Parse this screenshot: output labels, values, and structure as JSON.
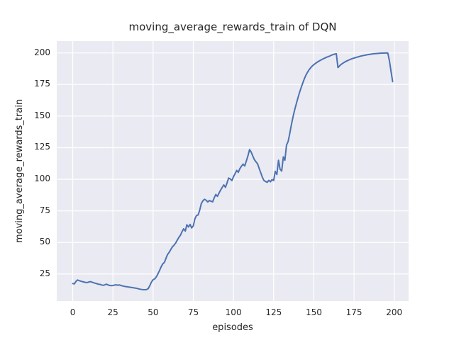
{
  "chart_data": {
    "type": "line",
    "title": "moving_average_rewards_train of DQN",
    "xlabel": "episodes",
    "ylabel": "moving_average_rewards_train",
    "xlim": [
      -9.95,
      208.95
    ],
    "ylim": [
      3.65,
      209.35
    ],
    "xticks": [
      0,
      25,
      50,
      75,
      100,
      125,
      150,
      175,
      200
    ],
    "yticks": [
      25,
      50,
      75,
      100,
      125,
      150,
      175,
      200
    ],
    "grid": true,
    "legend_position": "none",
    "plot_bg": "#EAEAF2",
    "grid_color": "#FFFFFF",
    "text_color": "#262626",
    "fig_bg": "#FFFFFF",
    "series": [
      {
        "name": "moving_average_rewards_train",
        "color": "#4C72B0",
        "line_width": 2,
        "points": [
          [
            0,
            17.5
          ],
          [
            1,
            17.2
          ],
          [
            2,
            19.2
          ],
          [
            3,
            20.3
          ],
          [
            4,
            19.8
          ],
          [
            5,
            19.4
          ],
          [
            6,
            19.0
          ],
          [
            7,
            18.7
          ],
          [
            8,
            18.4
          ],
          [
            9,
            18.3
          ],
          [
            10,
            18.7
          ],
          [
            11,
            19.0
          ],
          [
            12,
            18.6
          ],
          [
            13,
            18.1
          ],
          [
            14,
            17.7
          ],
          [
            15,
            17.4
          ],
          [
            16,
            17.0
          ],
          [
            17,
            16.8
          ],
          [
            18,
            16.4
          ],
          [
            19,
            16.1
          ],
          [
            20,
            16.5
          ],
          [
            21,
            17.0
          ],
          [
            22,
            16.4
          ],
          [
            23,
            16.0
          ],
          [
            24,
            15.8
          ],
          [
            25,
            15.9
          ],
          [
            26,
            16.3
          ],
          [
            27,
            16.5
          ],
          [
            28,
            16.2
          ],
          [
            29,
            16.4
          ],
          [
            30,
            16.0
          ],
          [
            31,
            15.6
          ],
          [
            32,
            15.3
          ],
          [
            33,
            15.1
          ],
          [
            34,
            14.9
          ],
          [
            35,
            14.7
          ],
          [
            36,
            14.5
          ],
          [
            37,
            14.3
          ],
          [
            38,
            14.1
          ],
          [
            39,
            13.9
          ],
          [
            40,
            13.6
          ],
          [
            41,
            13.3
          ],
          [
            42,
            13.0
          ],
          [
            43,
            12.8
          ],
          [
            44,
            12.7
          ],
          [
            45,
            12.6
          ],
          [
            46,
            12.8
          ],
          [
            47,
            13.5
          ],
          [
            48,
            16.0
          ],
          [
            49,
            18.8
          ],
          [
            50,
            20.5
          ],
          [
            51,
            21.2
          ],
          [
            52,
            22.8
          ],
          [
            53,
            25.2
          ],
          [
            54,
            27.8
          ],
          [
            55,
            30.8
          ],
          [
            56,
            33.0
          ],
          [
            57,
            34.2
          ],
          [
            58,
            37.5
          ],
          [
            59,
            40.5
          ],
          [
            60,
            42.2
          ],
          [
            61,
            44.5
          ],
          [
            62,
            46.5
          ],
          [
            63,
            47.8
          ],
          [
            64,
            49.5
          ],
          [
            65,
            51.8
          ],
          [
            66,
            54.0
          ],
          [
            67,
            55.8
          ],
          [
            68,
            58.5
          ],
          [
            69,
            60.8
          ],
          [
            70,
            59.0
          ],
          [
            71,
            64.0
          ],
          [
            72,
            62.3
          ],
          [
            73,
            64.3
          ],
          [
            74,
            61.5
          ],
          [
            75,
            63.2
          ],
          [
            76,
            68.8
          ],
          [
            77,
            71.3
          ],
          [
            78,
            71.8
          ],
          [
            79,
            75.5
          ],
          [
            80,
            80.8
          ],
          [
            81,
            83.0
          ],
          [
            82,
            84.2
          ],
          [
            83,
            83.4
          ],
          [
            84,
            82.0
          ],
          [
            85,
            83.2
          ],
          [
            86,
            82.6
          ],
          [
            87,
            82.1
          ],
          [
            88,
            85.2
          ],
          [
            89,
            88.0
          ],
          [
            90,
            86.5
          ],
          [
            91,
            89.0
          ],
          [
            92,
            91.5
          ],
          [
            93,
            93.6
          ],
          [
            94,
            95.5
          ],
          [
            95,
            93.6
          ],
          [
            96,
            97.2
          ],
          [
            97,
            101.0
          ],
          [
            98,
            100.2
          ],
          [
            99,
            99.0
          ],
          [
            100,
            102.0
          ],
          [
            101,
            104.5
          ],
          [
            102,
            107.0
          ],
          [
            103,
            105.5
          ],
          [
            104,
            108.5
          ],
          [
            105,
            110.5
          ],
          [
            106,
            112.0
          ],
          [
            107,
            110.5
          ],
          [
            108,
            114.5
          ],
          [
            109,
            118.5
          ],
          [
            110,
            123.5
          ],
          [
            111,
            121.5
          ],
          [
            112,
            118.5
          ],
          [
            113,
            115.5
          ],
          [
            114,
            113.8
          ],
          [
            115,
            112.2
          ],
          [
            116,
            108.5
          ],
          [
            117,
            105.0
          ],
          [
            118,
            101.5
          ],
          [
            119,
            99.0
          ],
          [
            120,
            98.2
          ],
          [
            121,
            97.6
          ],
          [
            122,
            99.2
          ],
          [
            123,
            98.0
          ],
          [
            124,
            99.8
          ],
          [
            125,
            99.0
          ],
          [
            126,
            106.3
          ],
          [
            127,
            103.8
          ],
          [
            128,
            115.0
          ],
          [
            129,
            108.0
          ],
          [
            130,
            106.5
          ],
          [
            131,
            117.7
          ],
          [
            132,
            115.0
          ],
          [
            133,
            127.0
          ],
          [
            134,
            130.0
          ],
          [
            135,
            136.0
          ],
          [
            136,
            143.0
          ],
          [
            137,
            149.2
          ],
          [
            138,
            154.5
          ],
          [
            139,
            159.3
          ],
          [
            140,
            164.0
          ],
          [
            141,
            168.2
          ],
          [
            142,
            172.2
          ],
          [
            143,
            175.8
          ],
          [
            144,
            179.2
          ],
          [
            145,
            182.2
          ],
          [
            146,
            184.6
          ],
          [
            147,
            186.6
          ],
          [
            148,
            188.2
          ],
          [
            149,
            189.6
          ],
          [
            150,
            190.7
          ],
          [
            151,
            191.7
          ],
          [
            152,
            192.6
          ],
          [
            153,
            193.4
          ],
          [
            154,
            194.1
          ],
          [
            155,
            194.8
          ],
          [
            156,
            195.4
          ],
          [
            157,
            196.0
          ],
          [
            158,
            196.6
          ],
          [
            159,
            197.1
          ],
          [
            160,
            197.6
          ],
          [
            161,
            198.2
          ],
          [
            162,
            198.7
          ],
          [
            163,
            199.1
          ],
          [
            164,
            199.3
          ],
          [
            165,
            188.4
          ],
          [
            166,
            189.8
          ],
          [
            167,
            190.9
          ],
          [
            168,
            191.8
          ],
          [
            169,
            192.6
          ],
          [
            170,
            193.3
          ],
          [
            171,
            193.9
          ],
          [
            172,
            194.5
          ],
          [
            173,
            195.0
          ],
          [
            174,
            195.5
          ],
          [
            175,
            195.9
          ],
          [
            176,
            196.3
          ],
          [
            177,
            196.7
          ],
          [
            178,
            197.0
          ],
          [
            179,
            197.4
          ],
          [
            180,
            197.7
          ],
          [
            181,
            198.0
          ],
          [
            182,
            198.2
          ],
          [
            183,
            198.5
          ],
          [
            184,
            198.7
          ],
          [
            185,
            198.9
          ],
          [
            186,
            199.1
          ],
          [
            187,
            199.3
          ],
          [
            188,
            199.4
          ],
          [
            189,
            199.5
          ],
          [
            190,
            199.6
          ],
          [
            191,
            199.7
          ],
          [
            192,
            199.8
          ],
          [
            193,
            199.8
          ],
          [
            194,
            199.9
          ],
          [
            195,
            199.9
          ],
          [
            196,
            199.9
          ],
          [
            197,
            194.0
          ],
          [
            198,
            185.5
          ],
          [
            199,
            177.3
          ]
        ]
      }
    ]
  }
}
